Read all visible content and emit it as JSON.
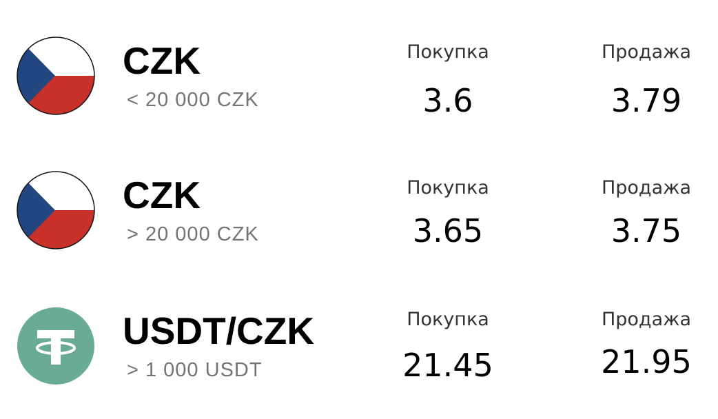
{
  "rates": [
    {
      "icon": "czech-flag-icon",
      "pair": "CZK",
      "limit": "< 20 000  CZK",
      "buy_label": "Покупка",
      "buy_value": "3.6",
      "sell_label": "Продажа",
      "sell_value": "3.79"
    },
    {
      "icon": "czech-flag-icon",
      "pair": "CZK",
      "limit": "> 20 000  CZK",
      "buy_label": "Покупка",
      "buy_value": "3.65",
      "sell_label": "Продажа",
      "sell_value": "3.75"
    },
    {
      "icon": "tether-icon",
      "pair": "USDT/CZK",
      "limit": "> 1 000  USDT",
      "buy_label": "Покупка",
      "buy_value": "21.45",
      "sell_label": "Продажа",
      "sell_value": "21.95"
    }
  ],
  "colors": {
    "czech_white": "#ffffff",
    "czech_red": "#c8302a",
    "czech_blue": "#22467f",
    "tether_green": "#69ab94",
    "limit_gray": "#757575"
  }
}
